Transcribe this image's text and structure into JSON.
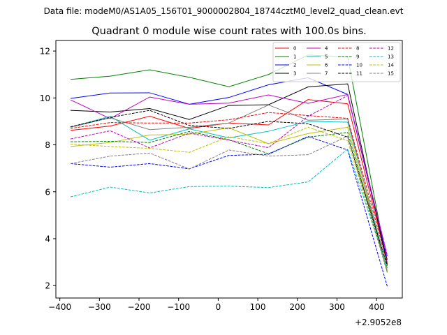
{
  "chart_data": {
    "type": "line",
    "suptitle": "Data file: modeM0/AS1A05_156T01_9000002804_18744cztM0_level2_quad_clean.evt",
    "title": "Quadrant 0 module wise count rates with 100.0s bins.",
    "xlabel": "",
    "ylabel": "",
    "x_offset_label": "+2.9052e8",
    "x": [
      -373,
      -273,
      -173,
      -73,
      27,
      127,
      227,
      327,
      427
    ],
    "xlim": [
      -410,
      465
    ],
    "ylim": [
      1.47,
      12.45
    ],
    "xticks": [
      -400,
      -300,
      -200,
      -100,
      0,
      100,
      200,
      300,
      400
    ],
    "xtick_labels": [
      "−400",
      "−300",
      "−200",
      "−100",
      "0",
      "100",
      "200",
      "300",
      "400"
    ],
    "yticks": [
      2,
      4,
      6,
      8,
      10,
      12
    ],
    "ytick_labels": [
      "2",
      "4",
      "6",
      "8",
      "10",
      "12"
    ],
    "legend_position": "top-right",
    "series": [
      {
        "name": "0",
        "color": "#ff0000",
        "dash": "solid",
        "values": [
          8.62,
          8.8,
          9.22,
          8.7,
          8.93,
          8.85,
          9.93,
          9.75,
          2.98
        ]
      },
      {
        "name": "1",
        "color": "#008000",
        "dash": "solid",
        "values": [
          10.79,
          10.93,
          11.2,
          10.88,
          10.48,
          11.0,
          11.83,
          11.75,
          2.9
        ]
      },
      {
        "name": "2",
        "color": "#0000ff",
        "dash": "solid",
        "values": [
          9.98,
          10.21,
          10.22,
          9.73,
          10.02,
          10.56,
          10.86,
          10.15,
          3.1
        ]
      },
      {
        "name": "3",
        "color": "#000000",
        "dash": "solid",
        "values": [
          9.47,
          9.4,
          9.55,
          9.08,
          9.68,
          9.71,
          10.47,
          10.6,
          2.9
        ]
      },
      {
        "name": "4",
        "color": "#bf00bf",
        "dash": "solid",
        "values": [
          9.92,
          9.12,
          10.04,
          9.73,
          9.78,
          10.13,
          9.77,
          10.15,
          3.25
        ]
      },
      {
        "name": "5",
        "color": "#00bfbf",
        "dash": "solid",
        "values": [
          8.75,
          9.22,
          8.2,
          8.68,
          8.3,
          8.58,
          9.0,
          8.97,
          2.75
        ]
      },
      {
        "name": "6",
        "color": "#bfbf00",
        "dash": "solid",
        "values": [
          7.93,
          8.1,
          8.42,
          8.45,
          8.73,
          8.05,
          8.48,
          8.75,
          2.65
        ]
      },
      {
        "name": "7",
        "color": "#808080",
        "dash": "solid",
        "values": [
          8.75,
          9.15,
          8.65,
          8.75,
          8.93,
          9.7,
          9.05,
          9.1,
          2.58
        ]
      },
      {
        "name": "8",
        "color": "#ff0000",
        "dash": "dashed",
        "values": [
          8.7,
          8.95,
          8.93,
          8.93,
          9.07,
          9.38,
          9.25,
          9.13,
          2.95
        ]
      },
      {
        "name": "9",
        "color": "#008000",
        "dash": "dashed",
        "values": [
          8.13,
          8.15,
          8.1,
          8.57,
          8.22,
          7.62,
          8.33,
          8.53,
          2.62
        ]
      },
      {
        "name": "10",
        "color": "#0000ff",
        "dash": "dashed",
        "values": [
          7.2,
          7.05,
          7.2,
          6.98,
          7.55,
          7.6,
          8.36,
          7.78,
          1.97
        ]
      },
      {
        "name": "11",
        "color": "#000000",
        "dash": "dashed",
        "values": [
          8.77,
          9.17,
          9.47,
          8.83,
          8.7,
          9.0,
          8.9,
          8.33,
          2.85
        ]
      },
      {
        "name": "12",
        "color": "#bf00bf",
        "dash": "dashed",
        "values": [
          8.25,
          8.6,
          7.87,
          8.5,
          8.2,
          7.88,
          9.22,
          10.1,
          3.3
        ]
      },
      {
        "name": "13",
        "color": "#00bfbf",
        "dash": "dashed",
        "values": [
          5.78,
          6.2,
          5.95,
          6.22,
          6.24,
          6.18,
          6.42,
          7.82,
          2.72
        ]
      },
      {
        "name": "14",
        "color": "#bfbf00",
        "dash": "dashed",
        "values": [
          8.03,
          7.93,
          7.85,
          7.68,
          8.35,
          8.05,
          8.75,
          8.18,
          2.62
        ]
      },
      {
        "name": "15",
        "color": "#808080",
        "dash": "dashed",
        "values": [
          7.2,
          7.52,
          7.65,
          6.97,
          7.78,
          7.52,
          7.58,
          8.37,
          2.55
        ]
      }
    ]
  }
}
